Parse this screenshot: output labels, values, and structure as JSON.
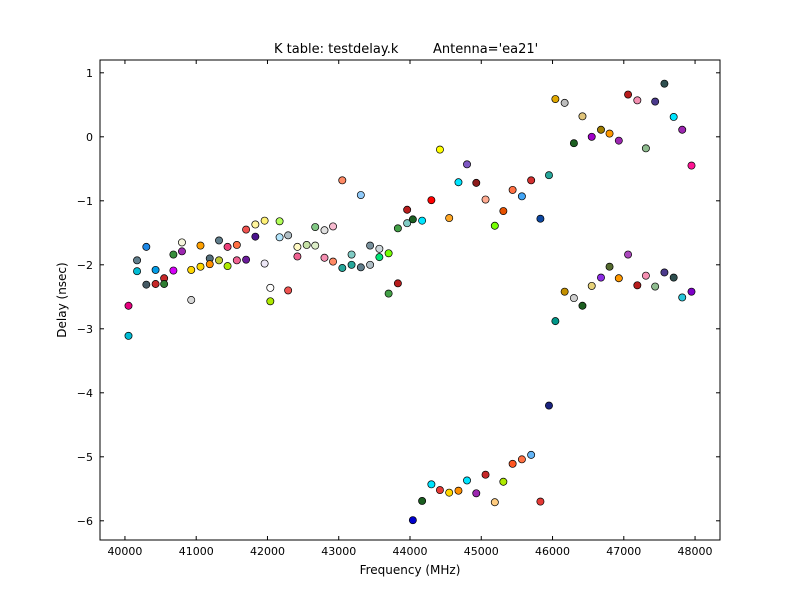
{
  "chart_data": {
    "type": "scatter",
    "title_left": "K table: testdelay.k",
    "title_right": "Antenna='ea21'",
    "xlabel": "Frequency (MHz)",
    "ylabel": "Delay (nsec)",
    "xlim": [
      39650,
      48350
    ],
    "ylim": [
      -6.3,
      1.2
    ],
    "xticks": [
      40000,
      41000,
      42000,
      43000,
      44000,
      45000,
      46000,
      47000,
      48000
    ],
    "xtick_labels": [
      "40000",
      "41000",
      "42000",
      "43000",
      "44000",
      "45000",
      "46000",
      "47000",
      "48000"
    ],
    "yticks": [
      1,
      0,
      -1,
      -2,
      -3,
      -4,
      -5,
      -6
    ],
    "ytick_labels": [
      "1",
      "0",
      "−1",
      "−2",
      "−3",
      "−4",
      "−5",
      "−6"
    ],
    "grid": false,
    "legend": "none",
    "points": [
      {
        "x": 40050,
        "y": -2.64,
        "color": "#e6007e"
      },
      {
        "x": 40050,
        "y": -3.11,
        "color": "#00bcd4"
      },
      {
        "x": 40170,
        "y": -1.93,
        "color": "#607d8b"
      },
      {
        "x": 40170,
        "y": -2.1,
        "color": "#00bcd4"
      },
      {
        "x": 40300,
        "y": -1.72,
        "color": "#1e88e5"
      },
      {
        "x": 40300,
        "y": -2.31,
        "color": "#455a64"
      },
      {
        "x": 40430,
        "y": -2.08,
        "color": "#039be5"
      },
      {
        "x": 40430,
        "y": -2.3,
        "color": "#c62828"
      },
      {
        "x": 40550,
        "y": -2.21,
        "color": "#c62828"
      },
      {
        "x": 40550,
        "y": -2.3,
        "color": "#2e7d32"
      },
      {
        "x": 40680,
        "y": -1.84,
        "color": "#388e3c"
      },
      {
        "x": 40680,
        "y": -2.09,
        "color": "#d500f9"
      },
      {
        "x": 40800,
        "y": -1.65,
        "color": "#f5f5dc"
      },
      {
        "x": 40800,
        "y": -1.79,
        "color": "#9c27b0"
      },
      {
        "x": 40930,
        "y": -2.08,
        "color": "#ffd600"
      },
      {
        "x": 40930,
        "y": -2.55,
        "color": "#d7d7d7"
      },
      {
        "x": 41060,
        "y": -1.7,
        "color": "#ffa000"
      },
      {
        "x": 41060,
        "y": -2.03,
        "color": "#ffd600"
      },
      {
        "x": 41190,
        "y": -1.9,
        "color": "#546e7a"
      },
      {
        "x": 41190,
        "y": -1.99,
        "color": "#ff8f00"
      },
      {
        "x": 41320,
        "y": -1.62,
        "color": "#607d8b"
      },
      {
        "x": 41320,
        "y": -1.93,
        "color": "#c0ca33"
      },
      {
        "x": 41440,
        "y": -1.72,
        "color": "#ec407a"
      },
      {
        "x": 41440,
        "y": -2.02,
        "color": "#aeea00"
      },
      {
        "x": 41570,
        "y": -1.69,
        "color": "#ff7043"
      },
      {
        "x": 41570,
        "y": -1.93,
        "color": "#f06292"
      },
      {
        "x": 41700,
        "y": -1.45,
        "color": "#ef5350"
      },
      {
        "x": 41700,
        "y": -1.92,
        "color": "#6a1b9a"
      },
      {
        "x": 41830,
        "y": -1.37,
        "color": "#fff59d"
      },
      {
        "x": 41830,
        "y": -1.56,
        "color": "#4a148c"
      },
      {
        "x": 41960,
        "y": -1.31,
        "color": "#fff176"
      },
      {
        "x": 41960,
        "y": -1.98,
        "color": "#ede7f6"
      },
      {
        "x": 42040,
        "y": -2.36,
        "color": "#ffffff"
      },
      {
        "x": 42040,
        "y": -2.57,
        "color": "#aeea00"
      },
      {
        "x": 42170,
        "y": -1.32,
        "color": "#b2ff59"
      },
      {
        "x": 42170,
        "y": -1.57,
        "color": "#b3e5fc"
      },
      {
        "x": 42290,
        "y": -1.54,
        "color": "#b0bec5"
      },
      {
        "x": 42290,
        "y": -2.4,
        "color": "#ef5350"
      },
      {
        "x": 42420,
        "y": -1.72,
        "color": "#fff9c4"
      },
      {
        "x": 42420,
        "y": -1.87,
        "color": "#f06292"
      },
      {
        "x": 42550,
        "y": -1.69,
        "color": "#c5e1a5"
      },
      {
        "x": 42670,
        "y": -1.41,
        "color": "#81c784"
      },
      {
        "x": 42670,
        "y": -1.7,
        "color": "#dcedc8"
      },
      {
        "x": 42800,
        "y": -1.46,
        "color": "#e0e0e0"
      },
      {
        "x": 42800,
        "y": -1.89,
        "color": "#f48fb1"
      },
      {
        "x": 42920,
        "y": -1.4,
        "color": "#f8bbd0"
      },
      {
        "x": 42920,
        "y": -1.95,
        "color": "#ff8a65"
      },
      {
        "x": 43050,
        "y": -0.68,
        "color": "#ff8a65"
      },
      {
        "x": 43050,
        "y": -2.05,
        "color": "#26a69a"
      },
      {
        "x": 43180,
        "y": -1.84,
        "color": "#80cbc4"
      },
      {
        "x": 43180,
        "y": -2.0,
        "color": "#26a69a"
      },
      {
        "x": 43310,
        "y": -0.91,
        "color": "#90caf9"
      },
      {
        "x": 43310,
        "y": -2.04,
        "color": "#607d8b"
      },
      {
        "x": 43440,
        "y": -1.7,
        "color": "#78909c"
      },
      {
        "x": 43440,
        "y": -2.0,
        "color": "#b0bec5"
      },
      {
        "x": 43570,
        "y": -1.75,
        "color": "#cfd8dc"
      },
      {
        "x": 43570,
        "y": -1.88,
        "color": "#00e676"
      },
      {
        "x": 43700,
        "y": -1.82,
        "color": "#76ff03"
      },
      {
        "x": 43700,
        "y": -2.45,
        "color": "#43a047"
      },
      {
        "x": 43830,
        "y": -1.43,
        "color": "#43a047"
      },
      {
        "x": 43830,
        "y": -2.29,
        "color": "#b71c1c"
      },
      {
        "x": 43960,
        "y": -1.14,
        "color": "#b71c1c"
      },
      {
        "x": 43960,
        "y": -1.35,
        "color": "#80cbc4"
      },
      {
        "x": 44040,
        "y": -1.29,
        "color": "#1b5e20"
      },
      {
        "x": 44040,
        "y": -5.99,
        "color": "#0000cd"
      },
      {
        "x": 44170,
        "y": -1.31,
        "color": "#00e5ff"
      },
      {
        "x": 44170,
        "y": -5.69,
        "color": "#1b5e20"
      },
      {
        "x": 44300,
        "y": -0.99,
        "color": "#ff0000"
      },
      {
        "x": 44300,
        "y": -5.43,
        "color": "#00e5ff"
      },
      {
        "x": 44420,
        "y": -0.2,
        "color": "#ffff00"
      },
      {
        "x": 44420,
        "y": -5.52,
        "color": "#e53935"
      },
      {
        "x": 44550,
        "y": -1.27,
        "color": "#ffa726"
      },
      {
        "x": 44550,
        "y": -5.56,
        "color": "#ffd600"
      },
      {
        "x": 44680,
        "y": -0.71,
        "color": "#00e5ff"
      },
      {
        "x": 44680,
        "y": -5.53,
        "color": "#ff8f00"
      },
      {
        "x": 44800,
        "y": -0.43,
        "color": "#7e57c2"
      },
      {
        "x": 44800,
        "y": -5.37,
        "color": "#00e5ff"
      },
      {
        "x": 44930,
        "y": -0.72,
        "color": "#8d1b1b"
      },
      {
        "x": 44930,
        "y": -5.57,
        "color": "#9c27b0"
      },
      {
        "x": 45060,
        "y": -0.98,
        "color": "#ffab91"
      },
      {
        "x": 45060,
        "y": -5.28,
        "color": "#c62828"
      },
      {
        "x": 45190,
        "y": -1.39,
        "color": "#76ff03"
      },
      {
        "x": 45190,
        "y": -5.71,
        "color": "#ffcc80"
      },
      {
        "x": 45310,
        "y": -1.16,
        "color": "#e65100"
      },
      {
        "x": 45310,
        "y": -5.39,
        "color": "#aeea00"
      },
      {
        "x": 45440,
        "y": -0.83,
        "color": "#ff7043"
      },
      {
        "x": 45440,
        "y": -5.11,
        "color": "#ff5722"
      },
      {
        "x": 45570,
        "y": -0.93,
        "color": "#42a5f5"
      },
      {
        "x": 45570,
        "y": -5.04,
        "color": "#ff7043"
      },
      {
        "x": 45700,
        "y": -0.68,
        "color": "#d32f2f"
      },
      {
        "x": 45700,
        "y": -4.97,
        "color": "#64b5f6"
      },
      {
        "x": 45830,
        "y": -1.28,
        "color": "#0d47a1"
      },
      {
        "x": 45830,
        "y": -5.7,
        "color": "#e53935"
      },
      {
        "x": 45950,
        "y": -0.6,
        "color": "#26a69a"
      },
      {
        "x": 45950,
        "y": -4.2,
        "color": "#1a237e"
      },
      {
        "x": 46040,
        "y": 0.59,
        "color": "#e0a800"
      },
      {
        "x": 46040,
        "y": -2.88,
        "color": "#009688"
      },
      {
        "x": 46170,
        "y": 0.53,
        "color": "#bdbdbd"
      },
      {
        "x": 46170,
        "y": -2.42,
        "color": "#c49000"
      },
      {
        "x": 46300,
        "y": -0.1,
        "color": "#1b5e20"
      },
      {
        "x": 46300,
        "y": -2.52,
        "color": "#cfcfcf"
      },
      {
        "x": 46420,
        "y": 0.32,
        "color": "#e0c47a"
      },
      {
        "x": 46420,
        "y": -2.64,
        "color": "#1b5e20"
      },
      {
        "x": 46550,
        "y": 0.0,
        "color": "#a000c8"
      },
      {
        "x": 46550,
        "y": -2.33,
        "color": "#e6d27a"
      },
      {
        "x": 46680,
        "y": 0.11,
        "color": "#9e7d00"
      },
      {
        "x": 46680,
        "y": -2.2,
        "color": "#8b2be2"
      },
      {
        "x": 46800,
        "y": 0.05,
        "color": "#ff9800"
      },
      {
        "x": 46800,
        "y": -2.03,
        "color": "#556b2f"
      },
      {
        "x": 46930,
        "y": -0.06,
        "color": "#9c27b0"
      },
      {
        "x": 46930,
        "y": -2.21,
        "color": "#ff9800"
      },
      {
        "x": 47060,
        "y": 0.66,
        "color": "#b71c1c"
      },
      {
        "x": 47060,
        "y": -1.84,
        "color": "#ab47bc"
      },
      {
        "x": 47190,
        "y": 0.57,
        "color": "#f48fb1"
      },
      {
        "x": 47190,
        "y": -2.32,
        "color": "#b71c1c"
      },
      {
        "x": 47310,
        "y": -0.18,
        "color": "#8fbc8f"
      },
      {
        "x": 47310,
        "y": -2.17,
        "color": "#f48fb1"
      },
      {
        "x": 47440,
        "y": 0.55,
        "color": "#4b3a8c"
      },
      {
        "x": 47440,
        "y": -2.34,
        "color": "#8fbc8f"
      },
      {
        "x": 47570,
        "y": 0.83,
        "color": "#2f4f4f"
      },
      {
        "x": 47570,
        "y": -2.12,
        "color": "#4b3a8c"
      },
      {
        "x": 47700,
        "y": 0.31,
        "color": "#00e5ff"
      },
      {
        "x": 47700,
        "y": -2.2,
        "color": "#2f4f4f"
      },
      {
        "x": 47820,
        "y": 0.11,
        "color": "#9c27b0"
      },
      {
        "x": 47820,
        "y": -2.51,
        "color": "#26c6da"
      },
      {
        "x": 47950,
        "y": -0.45,
        "color": "#ff1493"
      },
      {
        "x": 47950,
        "y": -2.42,
        "color": "#7e00c8"
      }
    ]
  }
}
